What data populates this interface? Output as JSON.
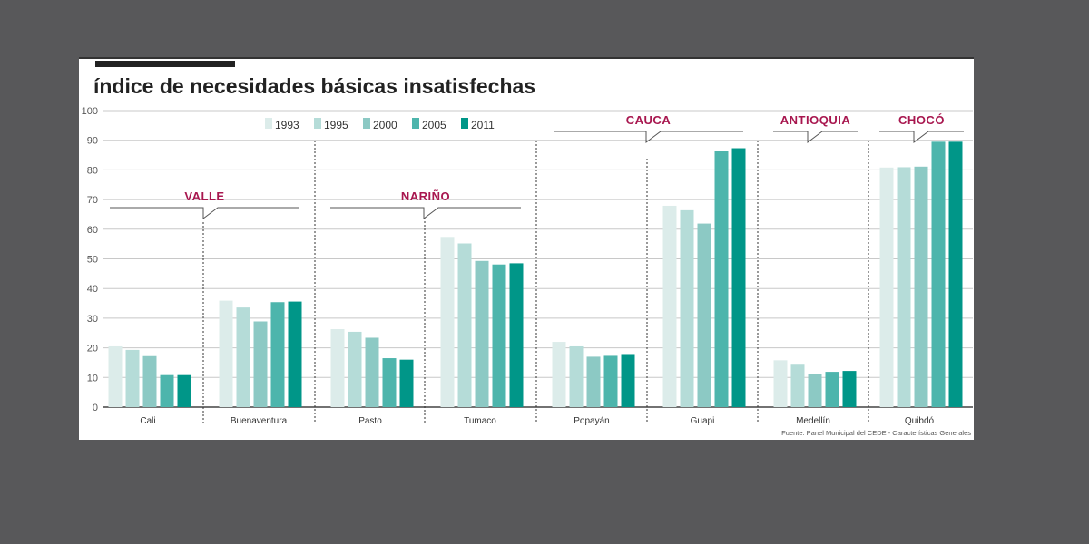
{
  "chart_data": {
    "type": "bar",
    "title": "índice de necesidades básicas insatisfechas",
    "source": "Fuente: Panel Municipal del CEDE - Características Generales",
    "ylim": [
      0,
      100
    ],
    "yticks": [
      0,
      10,
      20,
      30,
      40,
      50,
      60,
      70,
      80,
      90,
      100
    ],
    "grid": true,
    "legend_placement": "top-left",
    "categories": [
      "Cali",
      "Buenaventura",
      "Pasto",
      "Tumaco",
      "Popayán",
      "Guapi",
      "Medellín",
      "Quibdó"
    ],
    "regions": [
      {
        "name": "VALLE",
        "cities": [
          "Cali",
          "Buenaventura"
        ]
      },
      {
        "name": "NARIÑO",
        "cities": [
          "Pasto",
          "Tumaco"
        ]
      },
      {
        "name": "CAUCA",
        "cities": [
          "Popayán",
          "Guapi"
        ]
      },
      {
        "name": "ANTIOQUIA",
        "cities": [
          "Medellín"
        ]
      },
      {
        "name": "CHOCÓ",
        "cities": [
          "Quibdó"
        ]
      }
    ],
    "series": [
      {
        "name": "1993",
        "color": "#dcecea",
        "values": [
          20.5,
          35.9,
          26.3,
          57.4,
          22.0,
          67.9,
          15.8,
          80.8
        ]
      },
      {
        "name": "1995",
        "color": "#b5dcd8",
        "values": [
          19.3,
          33.6,
          25.4,
          55.2,
          20.5,
          66.4,
          14.3,
          80.9
        ]
      },
      {
        "name": "2000",
        "color": "#8cc9c4",
        "values": [
          17.2,
          28.9,
          23.4,
          49.3,
          17.0,
          61.9,
          11.2,
          81.1
        ]
      },
      {
        "name": "2005",
        "color": "#4db5ac",
        "values": [
          10.8,
          35.4,
          16.5,
          48.1,
          17.3,
          86.4,
          11.9,
          89.5
        ]
      },
      {
        "name": "2011",
        "color": "#009688",
        "values": [
          10.8,
          35.6,
          16.0,
          48.5,
          17.9,
          87.3,
          12.2,
          89.5
        ]
      }
    ],
    "region_color": "#a8174f"
  }
}
